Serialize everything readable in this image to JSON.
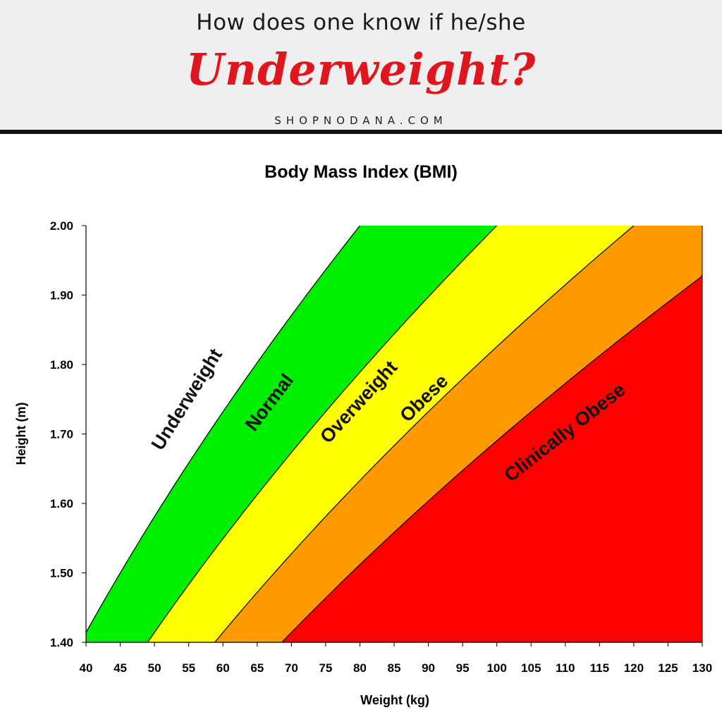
{
  "header": {
    "question": "How does one know if he/she",
    "headline": "Underweight?",
    "site": "SHOPNODANA.COM"
  },
  "chart_data": {
    "type": "area",
    "title": "Body Mass Index (BMI)",
    "xlabel": "Weight (kg)",
    "ylabel": "Height (m)",
    "xlim": [
      40,
      130
    ],
    "ylim": [
      1.4,
      2.0
    ],
    "xticks": [
      "40",
      "45",
      "50",
      "55",
      "60",
      "65",
      "70",
      "75",
      "80",
      "85",
      "90",
      "95",
      "100",
      "105",
      "110",
      "115",
      "120",
      "125",
      "130"
    ],
    "yticks": [
      "1.40",
      "1.50",
      "1.60",
      "1.70",
      "1.80",
      "1.90",
      "2.00"
    ],
    "boundaries": [
      {
        "name": "Underweight / Normal",
        "bmi": 20
      },
      {
        "name": "Normal / Overweight",
        "bmi": 25
      },
      {
        "name": "Overweight / Obese",
        "bmi": 30
      },
      {
        "name": "Obese / Clinically Obese",
        "bmi": 35
      }
    ],
    "regions": [
      {
        "label": "Underweight",
        "color": "#ffffff",
        "bmi_range": [
          0,
          20
        ],
        "label_at": [
          55.5,
          1.745
        ]
      },
      {
        "label": "Normal",
        "color": "#00ee00",
        "bmi_range": [
          20,
          25
        ],
        "label_at": [
          67.5,
          1.74
        ]
      },
      {
        "label": "Overweight",
        "color": "#ffff00",
        "bmi_range": [
          25,
          30
        ],
        "label_at": [
          80.5,
          1.74
        ]
      },
      {
        "label": "Obese",
        "color": "#ff9900",
        "bmi_range": [
          30,
          35
        ],
        "label_at": [
          90,
          1.745
        ]
      },
      {
        "label": "Clinically Obese",
        "color": "#ff0000",
        "bmi_range": [
          35,
          100
        ],
        "label_at": [
          110.5,
          1.695
        ]
      }
    ],
    "grid": false,
    "legend": "none"
  }
}
